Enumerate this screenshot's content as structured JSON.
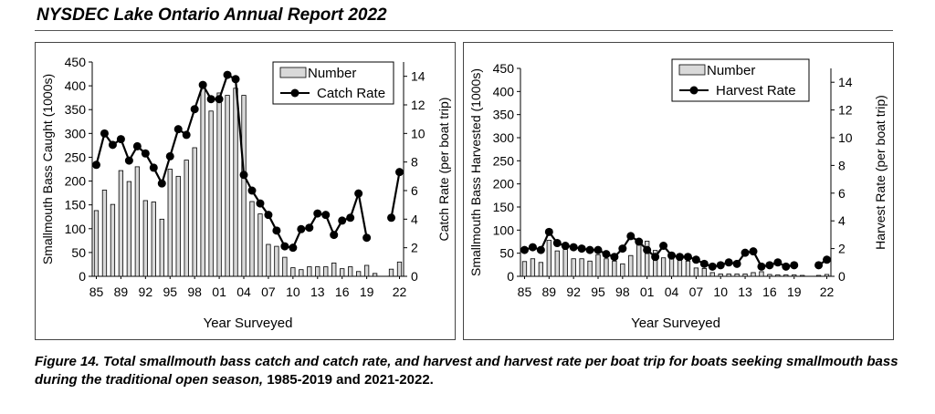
{
  "header": {
    "title": "NYSDEC Lake Ontario Annual Report 2022"
  },
  "caption": {
    "text": "Figure 14.  Total smallmouth bass catch and catch rate, and harvest and harvest rate per boat trip for boats seeking smallmouth bass during the traditional open season,",
    "years": "1985-2019 and 2021-2022."
  },
  "colors": {
    "bar_fill": "#d9d9d9",
    "bar_stroke": "#000000",
    "line": "#000000"
  },
  "chart_data": [
    {
      "type": "bar+line",
      "xlabel": "Year Surveyed",
      "ylabel_left": "Smallmouth  Bass Caught (1000s)",
      "ylabel_right": "Catch Rate (per boat trip)",
      "ylim_left": [
        0,
        450
      ],
      "yticks_left": [
        "0",
        "50",
        "100",
        "150",
        "200",
        "250",
        "300",
        "350",
        "400",
        "450"
      ],
      "ylim_right": [
        0,
        15
      ],
      "yticks_right": [
        "0",
        "2",
        "4",
        "6",
        "8",
        "10",
        "12",
        "14"
      ],
      "xtick_labels": [
        "85",
        "89",
        "92",
        "95",
        "98",
        "01",
        "04",
        "07",
        "10",
        "13",
        "16",
        "19",
        "22"
      ],
      "legend": {
        "placement": "top-right",
        "bar_label": "Number",
        "line_label": "Catch Rate"
      },
      "years": [
        1985,
        1986,
        1987,
        1988,
        1989,
        1990,
        1991,
        1992,
        1993,
        1994,
        1995,
        1996,
        1997,
        1998,
        1999,
        2000,
        2001,
        2002,
        2003,
        2004,
        2005,
        2006,
        2007,
        2008,
        2009,
        2010,
        2011,
        2012,
        2013,
        2014,
        2015,
        2016,
        2017,
        2018,
        2019,
        2020,
        2021,
        2022
      ],
      "bar_series": {
        "name": "Number",
        "values": [
          138,
          181,
          151,
          222,
          199,
          230,
          159,
          156,
          120,
          225,
          210,
          244,
          270,
          400,
          347,
          385,
          380,
          395,
          380,
          157,
          131,
          67,
          63,
          40,
          18,
          14,
          20,
          20,
          20,
          28,
          16,
          20,
          10,
          23,
          6,
          null,
          15,
          30
        ]
      },
      "line_series": {
        "name": "Catch Rate",
        "values": [
          7.8,
          10.0,
          9.2,
          9.6,
          8.1,
          9.1,
          8.6,
          7.6,
          6.5,
          8.4,
          10.3,
          9.9,
          11.7,
          13.4,
          12.4,
          12.4,
          14.1,
          13.8,
          7.1,
          6.0,
          5.1,
          4.3,
          3.2,
          2.1,
          2.0,
          3.3,
          3.4,
          4.4,
          4.3,
          2.9,
          3.9,
          4.1,
          5.8,
          2.7,
          null,
          null,
          4.1,
          7.3
        ]
      }
    },
    {
      "type": "bar+line",
      "xlabel": "Year Surveyed",
      "ylabel_left": "Smallmouth  Bass Harvested (1000s)",
      "ylabel_right": "Harvest Rate (per boat trip)",
      "ylim_left": [
        0,
        450
      ],
      "yticks_left": [
        "0",
        "50",
        "100",
        "150",
        "200",
        "250",
        "300",
        "350",
        "400",
        "450"
      ],
      "ylim_right": [
        0,
        15
      ],
      "yticks_right": [
        "0",
        "2",
        "4",
        "6",
        "8",
        "10",
        "12",
        "14"
      ],
      "xtick_labels": [
        "85",
        "89",
        "92",
        "95",
        "98",
        "01",
        "04",
        "07",
        "10",
        "13",
        "16",
        "19",
        "22"
      ],
      "legend": {
        "placement": "top-right",
        "bar_label": "Number",
        "line_label": "Harvest Rate"
      },
      "years": [
        1985,
        1986,
        1987,
        1988,
        1989,
        1990,
        1991,
        1992,
        1993,
        1994,
        1995,
        1996,
        1997,
        1998,
        1999,
        2000,
        2001,
        2002,
        2003,
        2004,
        2005,
        2006,
        2007,
        2008,
        2009,
        2010,
        2011,
        2012,
        2013,
        2014,
        2015,
        2016,
        2017,
        2018,
        2019,
        2020,
        2021,
        2022
      ],
      "bar_series": {
        "name": "Number",
        "values": [
          32,
          38,
          30,
          78,
          55,
          58,
          38,
          38,
          33,
          47,
          38,
          33,
          27,
          45,
          75,
          76,
          56,
          40,
          48,
          37,
          33,
          18,
          17,
          8,
          5,
          5,
          5,
          5,
          8,
          10,
          4,
          3,
          3,
          3,
          2,
          null,
          2,
          4
        ]
      },
      "line_series": {
        "name": "Harvest Rate",
        "values": [
          1.9,
          2.1,
          1.9,
          3.2,
          2.4,
          2.2,
          2.1,
          2.0,
          1.9,
          1.9,
          1.6,
          1.4,
          2.0,
          2.9,
          2.5,
          1.9,
          1.4,
          2.2,
          1.5,
          1.4,
          1.4,
          1.2,
          0.9,
          0.7,
          0.8,
          1.0,
          0.9,
          1.7,
          1.8,
          0.7,
          0.8,
          1.0,
          0.7,
          0.8,
          null,
          null,
          0.8,
          1.2
        ]
      }
    }
  ]
}
